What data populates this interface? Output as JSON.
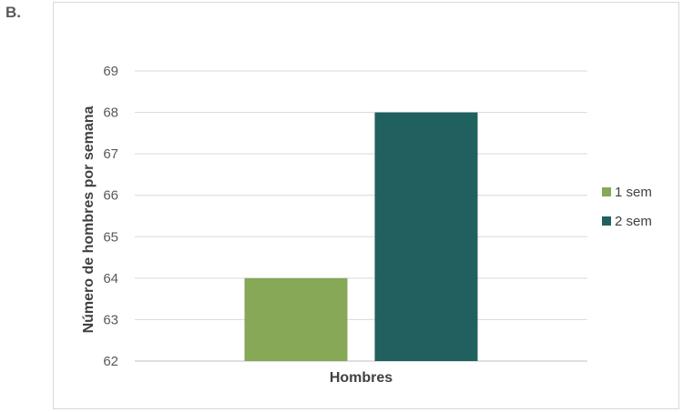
{
  "panel_label": "B.",
  "chart_data": {
    "type": "bar",
    "categories": [
      "Hombres"
    ],
    "series": [
      {
        "name": "1 sem",
        "color": "#86a857",
        "values": [
          64
        ]
      },
      {
        "name": "2 sem",
        "color": "#20615f",
        "values": [
          68
        ]
      }
    ],
    "xlabel": "Hombres",
    "ylabel": "Número de hombres por semana",
    "ylim": [
      62,
      69
    ],
    "yticks": [
      62,
      63,
      64,
      65,
      66,
      67,
      68,
      69
    ],
    "grid": true,
    "legend": "right"
  }
}
